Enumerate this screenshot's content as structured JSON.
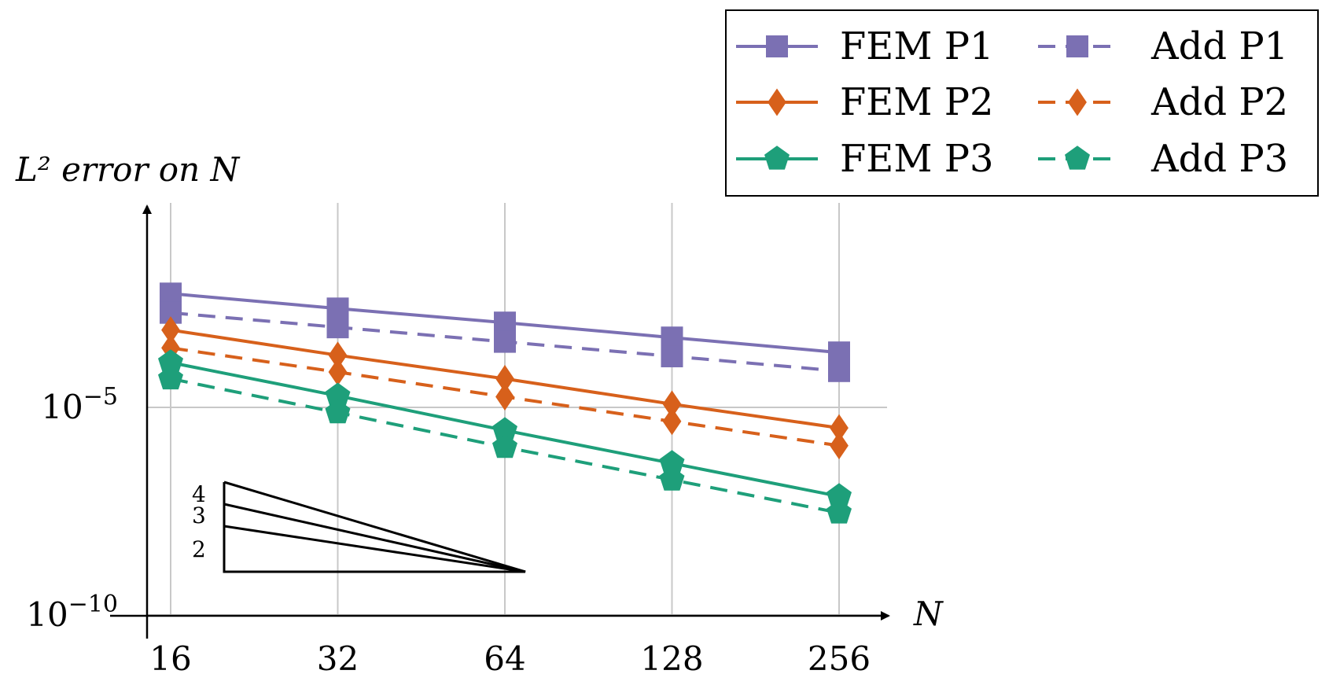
{
  "chart_data": {
    "type": "line",
    "title": "",
    "ylabel": "L² error on N",
    "xlabel": "N",
    "x_scale": "log2",
    "y_scale": "log10",
    "x": [
      16,
      32,
      64,
      128,
      256
    ],
    "xticks": [
      "16",
      "32",
      "64",
      "128",
      "256"
    ],
    "ylim": [
      1e-10,
      0.1
    ],
    "yticks": [
      {
        "value": 1e-05,
        "base": "10",
        "exp": "−5"
      },
      {
        "value": 1e-10,
        "base": "10",
        "exp": "−10"
      }
    ],
    "grid": true,
    "legend_position": "top-right",
    "series": [
      {
        "name": "FEM P1",
        "color": "#7b70b3",
        "marker": "square",
        "dash": "solid",
        "values": [
          0.0055,
          0.0024,
          0.0011,
          0.00048,
          0.00021
        ]
      },
      {
        "name": "Add P1",
        "color": "#7b70b3",
        "marker": "square",
        "dash": "dashed",
        "values": [
          0.0019,
          0.00085,
          0.00038,
          0.00017,
          7.5e-05
        ]
      },
      {
        "name": "FEM P2",
        "color": "#d7601b",
        "marker": "diamond",
        "dash": "solid",
        "values": [
          0.00073,
          0.00018,
          4.9e-05,
          1.2e-05,
          3.2e-06
        ]
      },
      {
        "name": "Add P2",
        "color": "#d7601b",
        "marker": "diamond",
        "dash": "dashed",
        "values": [
          0.00027,
          7.1e-05,
          1.8e-05,
          4.6e-06,
          1.2e-06
        ]
      },
      {
        "name": "FEM P3",
        "color": "#1e9f7a",
        "marker": "pentagon",
        "dash": "solid",
        "values": [
          0.00012,
          1.9e-05,
          2.8e-06,
          4.5e-07,
          7.2e-08
        ]
      },
      {
        "name": "Add P3",
        "color": "#1e9f7a",
        "marker": "pentagon",
        "dash": "dashed",
        "values": [
          4.9e-05,
          7.5e-06,
          1.1e-06,
          1.8e-07,
          2.9e-08
        ]
      }
    ],
    "slope_triangle": {
      "labels": [
        "4",
        "3",
        "2"
      ]
    }
  }
}
